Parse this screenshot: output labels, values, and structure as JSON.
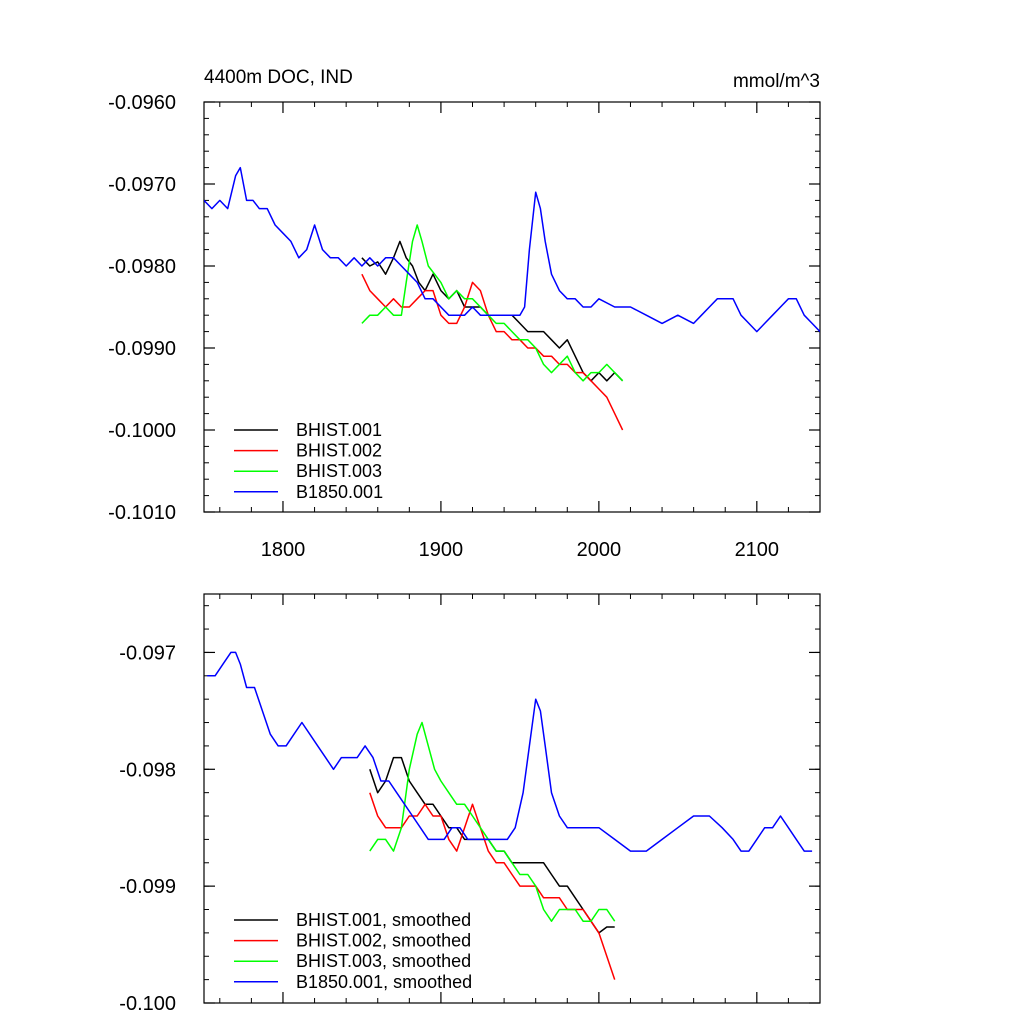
{
  "figure": {
    "panel_title_left": "4400m DOC, IND",
    "panel_title_right": "mmol/m^3"
  },
  "chart_data": [
    {
      "type": "line",
      "title": "4400m DOC, IND",
      "units": "mmol/m^3",
      "xlim": [
        1750,
        2140
      ],
      "ylim": [
        -0.101,
        -0.096
      ],
      "xticks": [
        1800,
        1900,
        2000,
        2100
      ],
      "xtick_labels": [
        "1800",
        "1900",
        "2000",
        "2100"
      ],
      "yticks": [
        -0.096,
        -0.097,
        -0.098,
        -0.099,
        -0.1,
        -0.101
      ],
      "ytick_labels": [
        "-0.0960",
        "-0.0970",
        "-0.0980",
        "-0.0990",
        "-0.1000",
        "-0.1010"
      ],
      "legend_position": "bottom-left",
      "grid": false,
      "series": [
        {
          "name": "BHIST.001",
          "color": "#000000",
          "x": [
            1850,
            1855,
            1860,
            1865,
            1870,
            1874,
            1878,
            1882,
            1886,
            1890,
            1895,
            1900,
            1905,
            1910,
            1915,
            1920,
            1925,
            1930,
            1935,
            1940,
            1945,
            1950,
            1955,
            1960,
            1965,
            1970,
            1975,
            1980,
            1985,
            1990,
            1995,
            2000,
            2005,
            2010,
            2015
          ],
          "y": [
            -0.0979,
            -0.098,
            -0.09795,
            -0.0981,
            -0.0979,
            -0.0977,
            -0.0979,
            -0.098,
            -0.0982,
            -0.0983,
            -0.0981,
            -0.0983,
            -0.0984,
            -0.0983,
            -0.0985,
            -0.0985,
            -0.0985,
            -0.0986,
            -0.0986,
            -0.0986,
            -0.0986,
            -0.0987,
            -0.0988,
            -0.0988,
            -0.0988,
            -0.0989,
            -0.099,
            -0.0989,
            -0.0991,
            -0.0993,
            -0.0994,
            -0.0993,
            -0.0994,
            -0.0993,
            -0.0994
          ]
        },
        {
          "name": "BHIST.002",
          "color": "#ff0000",
          "x": [
            1850,
            1855,
            1860,
            1865,
            1870,
            1875,
            1880,
            1885,
            1890,
            1895,
            1900,
            1905,
            1910,
            1915,
            1920,
            1925,
            1930,
            1935,
            1940,
            1945,
            1950,
            1955,
            1960,
            1965,
            1970,
            1975,
            1980,
            1985,
            1990,
            1995,
            2000,
            2005,
            2010,
            2015
          ],
          "y": [
            -0.0981,
            -0.0983,
            -0.0984,
            -0.0985,
            -0.0984,
            -0.0985,
            -0.0985,
            -0.0984,
            -0.0983,
            -0.0983,
            -0.0986,
            -0.0987,
            -0.0987,
            -0.0985,
            -0.0982,
            -0.0983,
            -0.0986,
            -0.0988,
            -0.0988,
            -0.0989,
            -0.0989,
            -0.099,
            -0.099,
            -0.0991,
            -0.0991,
            -0.0992,
            -0.0992,
            -0.0993,
            -0.0993,
            -0.0994,
            -0.0995,
            -0.0996,
            -0.0998,
            -0.1
          ]
        },
        {
          "name": "BHIST.003",
          "color": "#00ff00",
          "x": [
            1850,
            1855,
            1860,
            1865,
            1870,
            1875,
            1878,
            1882,
            1885,
            1888,
            1892,
            1896,
            1900,
            1905,
            1910,
            1915,
            1920,
            1925,
            1930,
            1935,
            1940,
            1945,
            1950,
            1955,
            1960,
            1965,
            1970,
            1975,
            1980,
            1985,
            1990,
            1995,
            2000,
            2005,
            2010,
            2015
          ],
          "y": [
            -0.0987,
            -0.0986,
            -0.0986,
            -0.0985,
            -0.0986,
            -0.0986,
            -0.0982,
            -0.0977,
            -0.0975,
            -0.0977,
            -0.098,
            -0.0981,
            -0.0982,
            -0.0984,
            -0.0983,
            -0.0984,
            -0.0984,
            -0.0985,
            -0.0986,
            -0.0987,
            -0.0987,
            -0.0988,
            -0.0989,
            -0.0989,
            -0.099,
            -0.0992,
            -0.0993,
            -0.0992,
            -0.0991,
            -0.0993,
            -0.0994,
            -0.0993,
            -0.0993,
            -0.0992,
            -0.0993,
            -0.0994
          ]
        },
        {
          "name": "B1850.001",
          "color": "#0000ff",
          "x": [
            1750,
            1755,
            1760,
            1765,
            1770,
            1773,
            1777,
            1781,
            1785,
            1790,
            1795,
            1800,
            1805,
            1810,
            1815,
            1820,
            1825,
            1830,
            1835,
            1840,
            1845,
            1850,
            1855,
            1860,
            1865,
            1870,
            1875,
            1880,
            1885,
            1890,
            1895,
            1900,
            1905,
            1910,
            1915,
            1920,
            1925,
            1930,
            1935,
            1940,
            1945,
            1950,
            1953,
            1956,
            1960,
            1963,
            1966,
            1970,
            1975,
            1980,
            1985,
            1990,
            1995,
            2000,
            2010,
            2020,
            2030,
            2040,
            2050,
            2060,
            2065,
            2070,
            2075,
            2080,
            2085,
            2090,
            2095,
            2100,
            2105,
            2110,
            2115,
            2120,
            2125,
            2130,
            2135,
            2140
          ],
          "y": [
            -0.0972,
            -0.0973,
            -0.0972,
            -0.0973,
            -0.0969,
            -0.0968,
            -0.0972,
            -0.0972,
            -0.0973,
            -0.0973,
            -0.0975,
            -0.0976,
            -0.0977,
            -0.0979,
            -0.0978,
            -0.0975,
            -0.0978,
            -0.0979,
            -0.0979,
            -0.098,
            -0.0979,
            -0.098,
            -0.0979,
            -0.098,
            -0.0979,
            -0.0979,
            -0.098,
            -0.0981,
            -0.0982,
            -0.0984,
            -0.0984,
            -0.0985,
            -0.0986,
            -0.0986,
            -0.0986,
            -0.0985,
            -0.0986,
            -0.0986,
            -0.0986,
            -0.0986,
            -0.0986,
            -0.0986,
            -0.0985,
            -0.0978,
            -0.0971,
            -0.0973,
            -0.0977,
            -0.0981,
            -0.0983,
            -0.0984,
            -0.0984,
            -0.0985,
            -0.0985,
            -0.0984,
            -0.0985,
            -0.0985,
            -0.0986,
            -0.0987,
            -0.0986,
            -0.0987,
            -0.0986,
            -0.0985,
            -0.0984,
            -0.0984,
            -0.0984,
            -0.0986,
            -0.0987,
            -0.0988,
            -0.0987,
            -0.0986,
            -0.0985,
            -0.0984,
            -0.0984,
            -0.0986,
            -0.0987,
            -0.0988
          ]
        }
      ]
    },
    {
      "type": "line",
      "title": "",
      "xlim": [
        1750,
        2140
      ],
      "ylim": [
        -0.1,
        -0.0965
      ],
      "xticks": [
        1800,
        1900,
        2000,
        2100
      ],
      "xtick_labels": [],
      "yticks": [
        -0.097,
        -0.098,
        -0.099,
        -0.1
      ],
      "ytick_labels": [
        "-0.097",
        "-0.098",
        "-0.099",
        "-0.100"
      ],
      "legend_position": "bottom-left",
      "grid": false,
      "series": [
        {
          "name": "BHIST.001, smoothed",
          "color": "#000000",
          "x": [
            1855,
            1860,
            1865,
            1870,
            1875,
            1880,
            1885,
            1890,
            1895,
            1900,
            1905,
            1910,
            1915,
            1920,
            1925,
            1930,
            1935,
            1940,
            1945,
            1950,
            1955,
            1960,
            1965,
            1970,
            1975,
            1980,
            1985,
            1990,
            1995,
            2000,
            2005,
            2010
          ],
          "y": [
            -0.098,
            -0.0982,
            -0.0981,
            -0.0979,
            -0.0979,
            -0.0981,
            -0.0982,
            -0.0983,
            -0.0983,
            -0.0984,
            -0.0985,
            -0.0985,
            -0.0986,
            -0.0986,
            -0.0986,
            -0.0986,
            -0.0987,
            -0.0987,
            -0.0988,
            -0.0988,
            -0.0988,
            -0.0988,
            -0.0988,
            -0.0989,
            -0.099,
            -0.099,
            -0.0991,
            -0.0992,
            -0.0993,
            -0.0994,
            -0.09935,
            -0.09935
          ]
        },
        {
          "name": "BHIST.002, smoothed",
          "color": "#ff0000",
          "x": [
            1855,
            1860,
            1865,
            1870,
            1875,
            1880,
            1885,
            1890,
            1895,
            1900,
            1905,
            1910,
            1915,
            1920,
            1925,
            1930,
            1935,
            1940,
            1945,
            1950,
            1955,
            1960,
            1965,
            1970,
            1975,
            1980,
            1985,
            1990,
            1995,
            2000,
            2005,
            2010
          ],
          "y": [
            -0.0982,
            -0.0984,
            -0.0985,
            -0.0985,
            -0.0985,
            -0.0984,
            -0.0984,
            -0.0983,
            -0.0984,
            -0.0984,
            -0.0986,
            -0.0987,
            -0.0985,
            -0.0983,
            -0.0985,
            -0.0987,
            -0.0988,
            -0.0988,
            -0.0989,
            -0.099,
            -0.099,
            -0.099,
            -0.0991,
            -0.0991,
            -0.0991,
            -0.0992,
            -0.0992,
            -0.0992,
            -0.0993,
            -0.0994,
            -0.0996,
            -0.0998
          ]
        },
        {
          "name": "BHIST.003, smoothed",
          "color": "#00ff00",
          "x": [
            1855,
            1860,
            1865,
            1870,
            1875,
            1880,
            1885,
            1888,
            1892,
            1896,
            1900,
            1905,
            1910,
            1915,
            1920,
            1925,
            1930,
            1935,
            1940,
            1945,
            1950,
            1955,
            1960,
            1965,
            1970,
            1975,
            1980,
            1985,
            1990,
            1995,
            2000,
            2005,
            2010
          ],
          "y": [
            -0.0987,
            -0.0986,
            -0.0986,
            -0.0987,
            -0.0985,
            -0.098,
            -0.0977,
            -0.0976,
            -0.0978,
            -0.098,
            -0.0981,
            -0.0982,
            -0.0983,
            -0.0983,
            -0.0984,
            -0.0985,
            -0.0986,
            -0.0987,
            -0.0987,
            -0.0988,
            -0.0989,
            -0.0989,
            -0.099,
            -0.0992,
            -0.0993,
            -0.0992,
            -0.0992,
            -0.0992,
            -0.0993,
            -0.0993,
            -0.0992,
            -0.0992,
            -0.0993
          ]
        },
        {
          "name": "B1850.001, smoothed",
          "color": "#0000ff",
          "x": [
            1752,
            1757,
            1762,
            1767,
            1770,
            1773,
            1777,
            1782,
            1787,
            1792,
            1797,
            1802,
            1807,
            1812,
            1817,
            1822,
            1827,
            1832,
            1837,
            1842,
            1847,
            1852,
            1857,
            1862,
            1867,
            1872,
            1877,
            1882,
            1887,
            1892,
            1897,
            1902,
            1907,
            1912,
            1917,
            1922,
            1927,
            1932,
            1937,
            1942,
            1947,
            1952,
            1956,
            1960,
            1963,
            1966,
            1970,
            1975,
            1980,
            1985,
            1990,
            1995,
            2000,
            2010,
            2020,
            2030,
            2040,
            2050,
            2060,
            2070,
            2078,
            2085,
            2090,
            2095,
            2100,
            2105,
            2110,
            2115,
            2120,
            2125,
            2130,
            2135
          ],
          "y": [
            -0.0972,
            -0.0972,
            -0.0971,
            -0.097,
            -0.097,
            -0.0971,
            -0.0973,
            -0.0973,
            -0.0975,
            -0.0977,
            -0.0978,
            -0.0978,
            -0.0977,
            -0.0976,
            -0.0977,
            -0.0978,
            -0.0979,
            -0.098,
            -0.0979,
            -0.0979,
            -0.0979,
            -0.0978,
            -0.0979,
            -0.0981,
            -0.0981,
            -0.0982,
            -0.0983,
            -0.0984,
            -0.0985,
            -0.0986,
            -0.0986,
            -0.0986,
            -0.0985,
            -0.0985,
            -0.0986,
            -0.0986,
            -0.0986,
            -0.0986,
            -0.0986,
            -0.0986,
            -0.0985,
            -0.0982,
            -0.0978,
            -0.0974,
            -0.0975,
            -0.0978,
            -0.0982,
            -0.0984,
            -0.0985,
            -0.0985,
            -0.0985,
            -0.0985,
            -0.0985,
            -0.0986,
            -0.0987,
            -0.0987,
            -0.0986,
            -0.0985,
            -0.0984,
            -0.0984,
            -0.0985,
            -0.0986,
            -0.0987,
            -0.0987,
            -0.0986,
            -0.0985,
            -0.0985,
            -0.0984,
            -0.0985,
            -0.0986,
            -0.0987,
            -0.0987
          ]
        }
      ]
    }
  ]
}
